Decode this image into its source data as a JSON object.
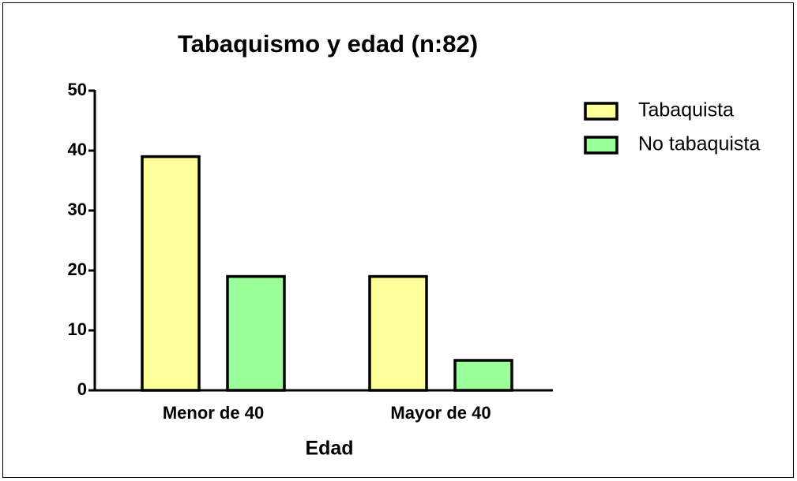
{
  "chart_data": {
    "type": "bar",
    "title": "Tabaquismo y edad (n:82)",
    "x_label": "Edad",
    "categories": [
      "Menor de 40",
      "Mayor de 40"
    ],
    "series": [
      {
        "name": "Tabaquista",
        "color": "#ffff99",
        "values": [
          39,
          19
        ]
      },
      {
        "name": "No tabaquista",
        "color": "#99ff99",
        "values": [
          19,
          5
        ]
      }
    ],
    "ylim": [
      0,
      50
    ],
    "yticks": [
      0,
      10,
      20,
      30,
      40,
      50
    ],
    "legend": "right"
  }
}
